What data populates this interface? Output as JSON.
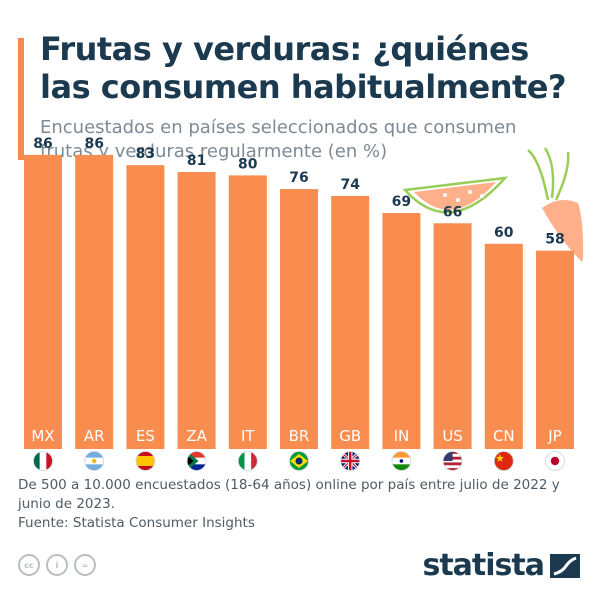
{
  "header": {
    "title": "Frutas y verduras: ¿quiénes las consumen habitualmente?",
    "subtitle": "Encuestados en países seleccionados que consumen frutas y verduras regularmente (en %)"
  },
  "chart_data": {
    "type": "bar",
    "categories": [
      "MX",
      "AR",
      "ES",
      "ZA",
      "IT",
      "BR",
      "GB",
      "IN",
      "US",
      "CN",
      "JP"
    ],
    "values": [
      86,
      86,
      83,
      81,
      80,
      76,
      74,
      69,
      66,
      60,
      58
    ],
    "title": "Frutas y verduras: ¿quiénes las consumen habitualmente?",
    "subtitle": "Encuestados en países seleccionados que consumen frutas y verduras regularmente (en %)",
    "xlabel": "",
    "ylabel": "",
    "ylim": [
      0,
      100
    ],
    "grid": false,
    "legend": "none",
    "bar_color": "#f98c4f"
  },
  "flags": [
    "mexico-flag-icon",
    "argentina-flag-icon",
    "spain-flag-icon",
    "south-africa-flag-icon",
    "italy-flag-icon",
    "brazil-flag-icon",
    "uk-flag-icon",
    "india-flag-icon",
    "usa-flag-icon",
    "china-flag-icon",
    "japan-flag-icon"
  ],
  "footer": {
    "note": "De 500 a 10.000 encuestados (18-64 años) online por país entre julio de 2022 y junio de 2023.",
    "source": "Fuente: Statista Consumer Insights"
  },
  "brand": {
    "name": "statista"
  },
  "icons": {
    "cc": "creative-commons-icon",
    "by": "attribution-icon",
    "nd": "no-derivatives-icon"
  },
  "colors": {
    "accent": "#f28b53",
    "title": "#1b3a4f",
    "subtitle": "#7d8a94",
    "bar": "#f98c4f"
  }
}
